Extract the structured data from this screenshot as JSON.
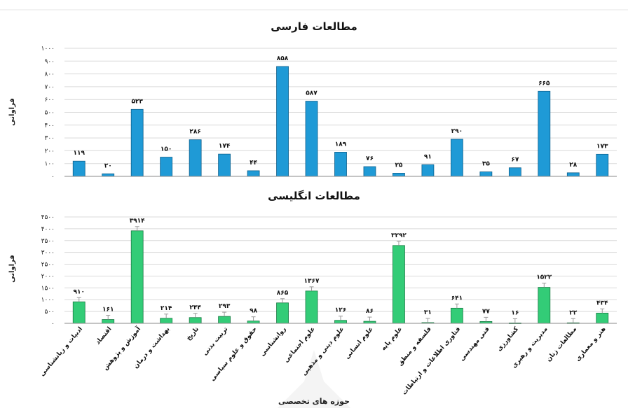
{
  "x_axis_title": "حوزه های تخصصی",
  "categories": [
    "ادبیات و زبانشناسی",
    "اقتصاد",
    "آموزش و پژوهش",
    "بهداشت و درمان",
    "تاریخ",
    "تربیت بدنی",
    "حقوق و علوم سیاسی",
    "روانشناسی",
    "علوم اجتماعی",
    "علوم دینی و مذهبی",
    "علوم انسانی",
    "علوم پایه",
    "فلسفه و منطق",
    "فناوری اطلاعات و ارتباطات",
    "فنی مهندسی",
    "کشاورزی",
    "مدیریت و رهبری",
    "مطالعات زنان",
    "هنر و معماری"
  ],
  "colors": {
    "persian_bar": "#1f9ad6",
    "persian_edge": "#0d5f8c",
    "english_bar": "#33cc77",
    "english_edge": "#1a7a44"
  },
  "chart_data": [
    {
      "type": "bar",
      "title": "مطالعات فارسی",
      "ylabel": "فراوانی",
      "ylim": [
        0,
        1000
      ],
      "ytick_step": 100,
      "ytick_labels": [
        "۰",
        "۱۰۰",
        "۲۰۰",
        "۳۰۰",
        "۴۰۰",
        "۵۰۰",
        "۶۰۰",
        "۷۰۰",
        "۸۰۰",
        "۹۰۰",
        "۱۰۰۰"
      ],
      "values": [
        119,
        20,
        523,
        150,
        286,
        174,
        44,
        858,
        587,
        189,
        76,
        25,
        91,
        290,
        35,
        67,
        665,
        28,
        173
      ],
      "value_labels": [
        "۱۱۹",
        "۲۰",
        "۵۲۳",
        "۱۵۰",
        "۲۸۶",
        "۱۷۴",
        "۴۴",
        "۸۵۸",
        "۵۸۷",
        "۱۸۹",
        "۷۶",
        "۲۵",
        "۹۱",
        "۲۹۰",
        "۳۵",
        "۶۷",
        "۶۶۵",
        "۲۸",
        "۱۷۳"
      ],
      "grid": true
    },
    {
      "type": "bar",
      "title": "مطالعات انگلیسی",
      "ylabel": "فراوانی",
      "ylim": [
        0,
        4500
      ],
      "ytick_step": 500,
      "ytick_labels": [
        "۰",
        "۵۰۰",
        "۱۰۰۰",
        "۱۵۰۰",
        "۲۰۰۰",
        "۲۵۰۰",
        "۳۰۰۰",
        "۳۵۰۰",
        "۴۰۰۰",
        "۴۵۰۰"
      ],
      "values": [
        910,
        161,
        3914,
        214,
        244,
        293,
        98,
        865,
        1367,
        126,
        86,
        3292,
        31,
        641,
        77,
        16,
        1522,
        22,
        434
      ],
      "value_labels": [
        "۹۱۰",
        "۱۶۱",
        "۳۹۱۴",
        "۲۱۴",
        "۲۴۴",
        "۲۹۳",
        "۹۸",
        "۸۶۵",
        "۱۳۶۷",
        "۱۲۶",
        "۸۶",
        "۳۲۹۲",
        "۳۱",
        "۶۴۱",
        "۷۷",
        "۱۶",
        "۱۵۲۲",
        "۲۲",
        "۴۳۴"
      ],
      "grid": true
    }
  ]
}
